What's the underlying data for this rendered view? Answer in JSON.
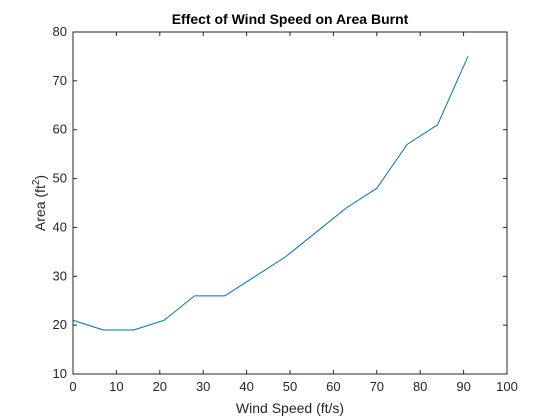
{
  "chart_data": {
    "type": "line",
    "title": "Effect of Wind Speed on Area Burnt",
    "xlabel": "Wind Speed (ft/s)",
    "ylabel_main": "Area (ft",
    "ylabel_sup": "2",
    "ylabel_close": ")",
    "xlim": [
      0,
      100
    ],
    "ylim": [
      10,
      80
    ],
    "xticks": [
      "0",
      "10",
      "20",
      "30",
      "40",
      "50",
      "60",
      "70",
      "80",
      "90",
      "100"
    ],
    "yticks": [
      "10",
      "20",
      "30",
      "40",
      "50",
      "60",
      "70",
      "80"
    ],
    "grid": false,
    "series": [
      {
        "color": "#0072BD",
        "x": [
          0,
          7,
          14,
          21,
          28,
          35,
          42,
          49,
          56,
          63,
          70,
          77,
          84,
          91
        ],
        "y": [
          21,
          19,
          19,
          21,
          26,
          26,
          30,
          34,
          39,
          44,
          48,
          57,
          61,
          75
        ]
      }
    ]
  }
}
